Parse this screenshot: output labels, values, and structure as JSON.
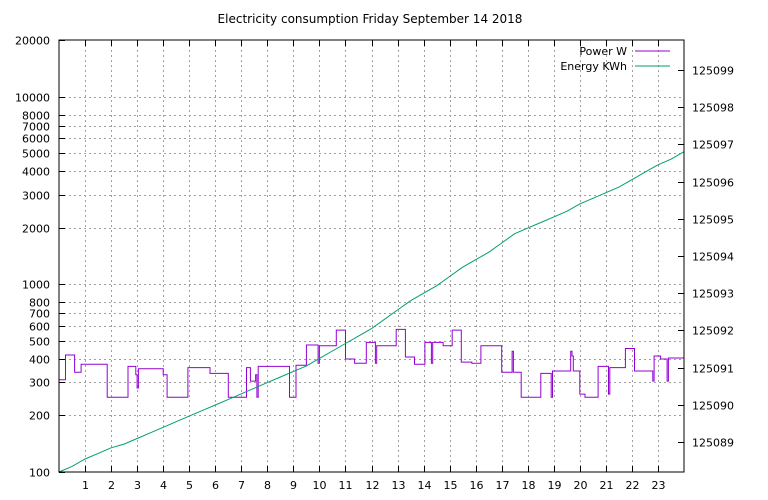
{
  "chart_data": {
    "type": "line",
    "title": "Electricity consumption Friday September 14 2018",
    "grid": true,
    "legend_position": "top-right",
    "x": {
      "range": [
        0,
        24
      ],
      "ticks": [
        1,
        2,
        3,
        4,
        5,
        6,
        7,
        8,
        9,
        10,
        11,
        12,
        13,
        14,
        15,
        16,
        17,
        18,
        19,
        20,
        21,
        22,
        23
      ],
      "tick_labels": [
        "1",
        "2",
        "3",
        "4",
        "5",
        "6",
        "7",
        "8",
        "9",
        "10",
        "11",
        "12",
        "13",
        "14",
        "15",
        "16",
        "17",
        "18",
        "19",
        "20",
        "21",
        "22",
        "23"
      ]
    },
    "y_left": {
      "scale": "log",
      "range": [
        100,
        20000
      ],
      "ticks": [
        100,
        200,
        300,
        400,
        500,
        600,
        700,
        800,
        1000,
        2000,
        3000,
        4000,
        5000,
        6000,
        7000,
        8000,
        10000,
        20000
      ],
      "tick_labels": [
        "100",
        "200",
        "300",
        "400",
        "500",
        "600",
        "700",
        "800",
        "1000",
        "2000",
        "3000",
        "4000",
        "5000",
        "6000",
        "7000",
        "8000",
        "10000",
        "20000"
      ]
    },
    "y_right": {
      "scale": "linear",
      "range": [
        125088.2,
        125099.8
      ],
      "ticks": [
        125089,
        125090,
        125091,
        125092,
        125093,
        125094,
        125095,
        125096,
        125097,
        125098,
        125099
      ],
      "tick_labels": [
        "125089",
        "125090",
        "125091",
        "125092",
        "125093",
        "125094",
        "125095",
        "125096",
        "125097",
        "125098",
        "125099"
      ]
    },
    "series": [
      {
        "name": "Power W",
        "axis": "left",
        "color": "#9400d3",
        "style": "steps",
        "points": [
          [
            0.0,
            310
          ],
          [
            0.25,
            420
          ],
          [
            0.6,
            340
          ],
          [
            0.85,
            375
          ],
          [
            1.8,
            375
          ],
          [
            1.85,
            250
          ],
          [
            2.6,
            250
          ],
          [
            2.65,
            365
          ],
          [
            2.95,
            330
          ],
          [
            3.0,
            280
          ],
          [
            3.05,
            355
          ],
          [
            3.95,
            355
          ],
          [
            4.0,
            330
          ],
          [
            4.15,
            250
          ],
          [
            4.9,
            250
          ],
          [
            4.95,
            360
          ],
          [
            5.75,
            360
          ],
          [
            5.8,
            335
          ],
          [
            6.45,
            335
          ],
          [
            6.5,
            250
          ],
          [
            7.15,
            250
          ],
          [
            7.2,
            360
          ],
          [
            7.35,
            305
          ],
          [
            7.55,
            330
          ],
          [
            7.6,
            250
          ],
          [
            7.65,
            365
          ],
          [
            8.8,
            365
          ],
          [
            8.85,
            250
          ],
          [
            9.05,
            250
          ],
          [
            9.1,
            370
          ],
          [
            9.45,
            370
          ],
          [
            9.5,
            475
          ],
          [
            9.9,
            475
          ],
          [
            9.95,
            380
          ],
          [
            10.0,
            470
          ],
          [
            10.6,
            470
          ],
          [
            10.65,
            570
          ],
          [
            10.95,
            570
          ],
          [
            11.0,
            400
          ],
          [
            11.3,
            400
          ],
          [
            11.35,
            380
          ],
          [
            11.75,
            380
          ],
          [
            11.8,
            490
          ],
          [
            12.1,
            490
          ],
          [
            12.15,
            380
          ],
          [
            12.2,
            470
          ],
          [
            12.9,
            470
          ],
          [
            12.95,
            575
          ],
          [
            13.25,
            575
          ],
          [
            13.3,
            410
          ],
          [
            13.6,
            410
          ],
          [
            13.65,
            375
          ],
          [
            14.0,
            375
          ],
          [
            14.05,
            490
          ],
          [
            14.25,
            490
          ],
          [
            14.3,
            380
          ],
          [
            14.35,
            490
          ],
          [
            14.7,
            490
          ],
          [
            14.75,
            470
          ],
          [
            15.05,
            470
          ],
          [
            15.1,
            570
          ],
          [
            15.4,
            570
          ],
          [
            15.45,
            385
          ],
          [
            15.8,
            385
          ],
          [
            15.85,
            380
          ],
          [
            16.15,
            380
          ],
          [
            16.2,
            470
          ],
          [
            16.95,
            470
          ],
          [
            17.0,
            340
          ],
          [
            17.35,
            340
          ],
          [
            17.4,
            440
          ],
          [
            17.45,
            340
          ],
          [
            17.7,
            340
          ],
          [
            17.75,
            250
          ],
          [
            18.45,
            250
          ],
          [
            18.5,
            335
          ],
          [
            18.85,
            335
          ],
          [
            18.9,
            250
          ],
          [
            18.95,
            345
          ],
          [
            19.6,
            345
          ],
          [
            19.65,
            440
          ],
          [
            19.7,
            415
          ],
          [
            19.75,
            345
          ],
          [
            19.95,
            345
          ],
          [
            20.0,
            260
          ],
          [
            20.15,
            260
          ],
          [
            20.2,
            250
          ],
          [
            20.65,
            250
          ],
          [
            20.7,
            365
          ],
          [
            21.05,
            365
          ],
          [
            21.1,
            260
          ],
          [
            21.15,
            360
          ],
          [
            21.7,
            360
          ],
          [
            21.75,
            455
          ],
          [
            22.05,
            455
          ],
          [
            22.1,
            345
          ],
          [
            22.75,
            345
          ],
          [
            22.8,
            305
          ],
          [
            22.85,
            415
          ],
          [
            23.05,
            415
          ],
          [
            23.1,
            400
          ],
          [
            23.3,
            400
          ],
          [
            23.35,
            305
          ],
          [
            23.4,
            405
          ],
          [
            24.0,
            405
          ]
        ]
      },
      {
        "name": "Energy KWh",
        "axis": "right",
        "color": "#009e73",
        "style": "line",
        "points": [
          [
            0,
            125088.2
          ],
          [
            0.5,
            125088.35
          ],
          [
            1,
            125088.55
          ],
          [
            1.5,
            125088.7
          ],
          [
            2,
            125088.85
          ],
          [
            2.5,
            125088.95
          ],
          [
            3,
            125089.1
          ],
          [
            3.5,
            125089.25
          ],
          [
            4,
            125089.4
          ],
          [
            4.5,
            125089.55
          ],
          [
            5,
            125089.7
          ],
          [
            5.5,
            125089.85
          ],
          [
            6,
            125090.0
          ],
          [
            6.5,
            125090.15
          ],
          [
            7,
            125090.3
          ],
          [
            7.5,
            125090.45
          ],
          [
            8,
            125090.6
          ],
          [
            8.5,
            125090.75
          ],
          [
            9,
            125090.9
          ],
          [
            9.5,
            125091.05
          ],
          [
            10,
            125091.25
          ],
          [
            10.5,
            125091.45
          ],
          [
            11,
            125091.65
          ],
          [
            11.5,
            125091.85
          ],
          [
            12,
            125092.05
          ],
          [
            12.5,
            125092.3
          ],
          [
            13,
            125092.55
          ],
          [
            13.5,
            125092.8
          ],
          [
            14,
            125093.0
          ],
          [
            14.5,
            125093.2
          ],
          [
            15,
            125093.45
          ],
          [
            15.5,
            125093.7
          ],
          [
            16,
            125093.9
          ],
          [
            16.5,
            125094.1
          ],
          [
            17,
            125094.35
          ],
          [
            17.5,
            125094.6
          ],
          [
            18,
            125094.75
          ],
          [
            18.5,
            125094.9
          ],
          [
            19,
            125095.05
          ],
          [
            19.5,
            125095.2
          ],
          [
            20,
            125095.4
          ],
          [
            20.5,
            125095.55
          ],
          [
            21,
            125095.7
          ],
          [
            21.5,
            125095.85
          ],
          [
            22,
            125096.05
          ],
          [
            22.5,
            125096.25
          ],
          [
            23,
            125096.45
          ],
          [
            23.5,
            125096.6
          ],
          [
            24,
            125096.8
          ]
        ]
      }
    ]
  }
}
